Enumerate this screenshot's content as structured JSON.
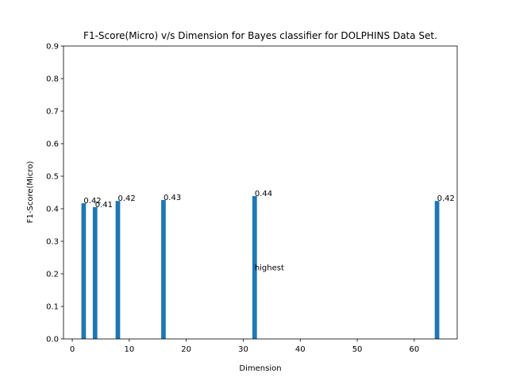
{
  "chart_data": {
    "type": "bar",
    "title": "F1-Score(Micro) v/s Dimension for Bayes classifier for DOLPHINS Data Set.",
    "x_label": "Dimension",
    "y_label": "F1-Score(Micro)",
    "x": [
      2,
      4,
      8,
      16,
      32,
      64
    ],
    "values": [
      0.417,
      0.405,
      0.424,
      0.427,
      0.439,
      0.424
    ],
    "value_labels": [
      "0.42",
      "0.41",
      "0.42",
      "0.43",
      "0.44",
      "0.42"
    ],
    "bar_width": 0.8,
    "color": "#1f77b4",
    "xlim": [
      -1.54,
      67.54
    ],
    "xticks": [
      0,
      10,
      20,
      30,
      40,
      50,
      60
    ],
    "ylim": [
      0,
      0.9
    ],
    "yticks": [
      {
        "value": 0,
        "label": "0.0"
      },
      0.1,
      0.2,
      0.3,
      0.4,
      0.5,
      0.6,
      0.7,
      0.8,
      0.9
    ],
    "annotation": {
      "text": "highest",
      "x": 32,
      "y": 0.22
    }
  }
}
